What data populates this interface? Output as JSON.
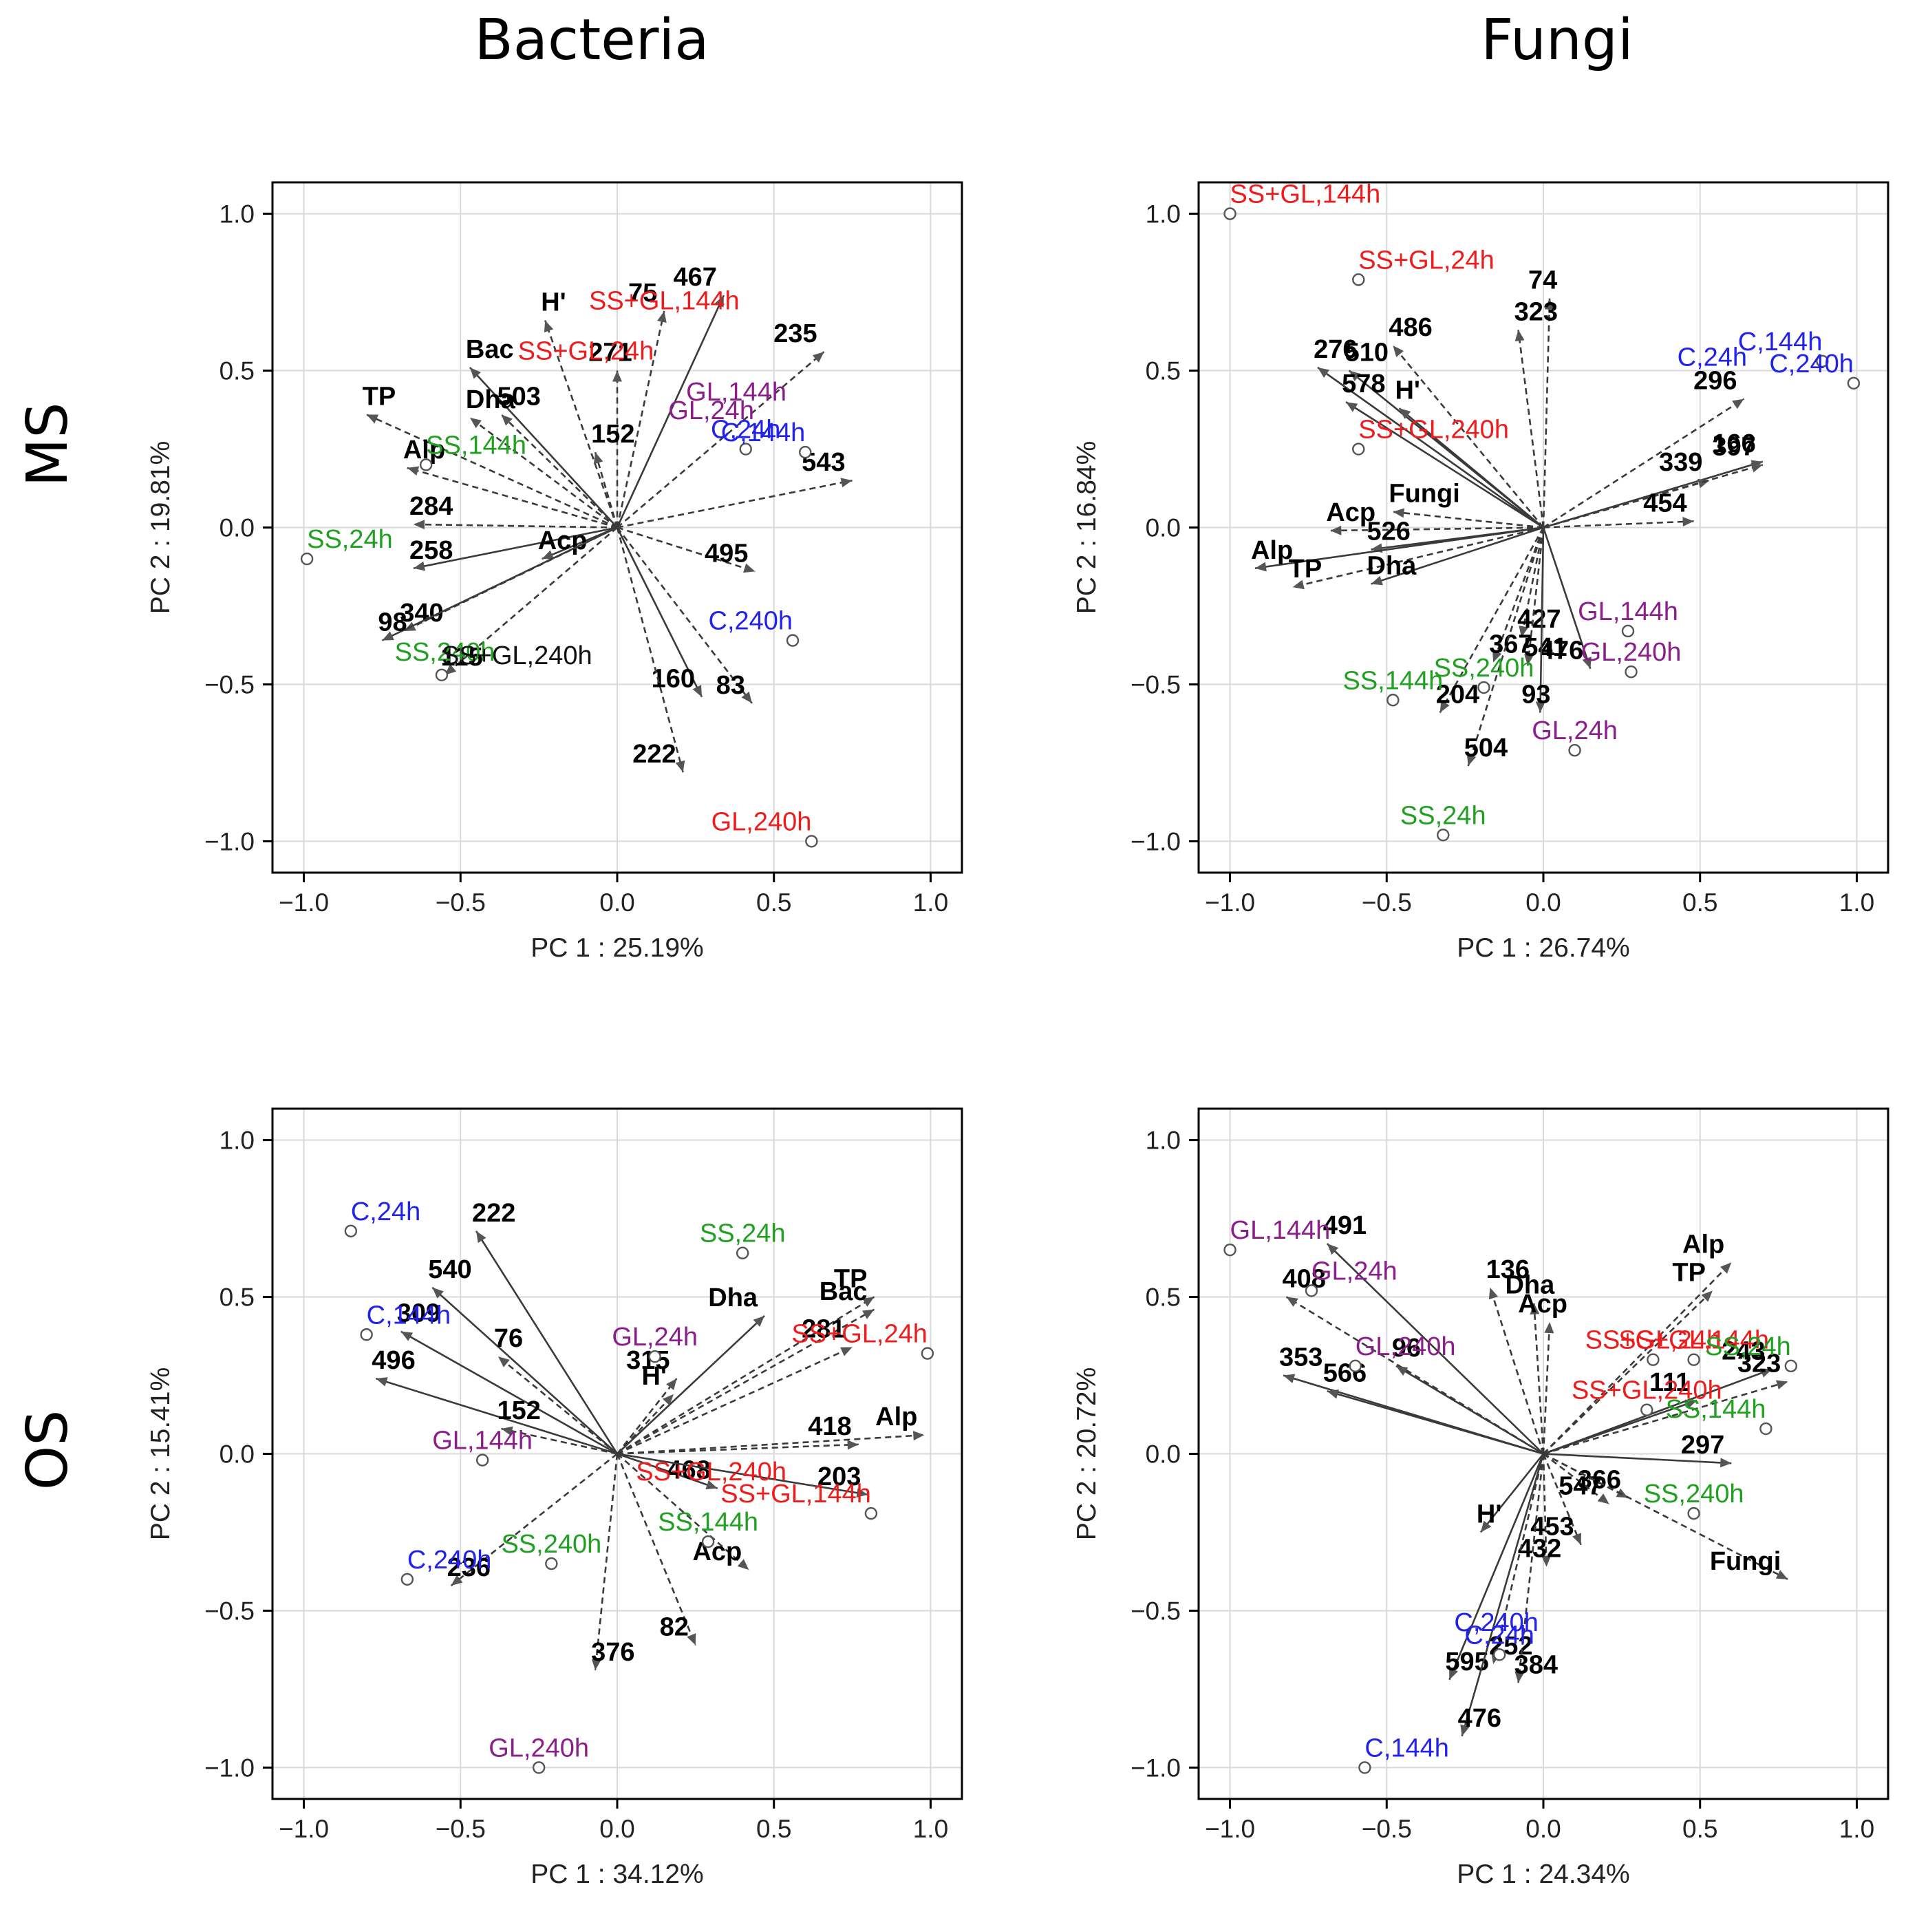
{
  "headers": {
    "columns": [
      "Bacteria",
      "Fungi"
    ],
    "rows": [
      "MS",
      "OS"
    ]
  },
  "colors": {
    "C": "#2222ee",
    "SS": "#22a022",
    "GL": "#8a1f8a",
    "SSGL": "#ee1c1c",
    "black": "#111111"
  },
  "chart_data": [
    {
      "id": "ms-bacteria",
      "type": "scatter",
      "title": "",
      "xlabel": "PC 1 : 25.19%",
      "ylabel": "PC 2 : 19.81%",
      "xlim": [
        -1.1,
        1.1
      ],
      "ylim": [
        -1.1,
        1.1
      ],
      "ticks": [
        -1.0,
        -0.5,
        0.0,
        0.5,
        1.0
      ],
      "tick_labels": [
        "−1.0",
        "−0.5",
        "0.0",
        "0.5",
        "1.0"
      ],
      "variables": [
        {
          "label": "467",
          "x": 0.34,
          "y": 0.74,
          "style": "solid"
        },
        {
          "label": "75",
          "x": 0.15,
          "y": 0.69,
          "style": "dashed"
        },
        {
          "label": "235",
          "x": 0.66,
          "y": 0.56,
          "style": "dashed"
        },
        {
          "label": "271",
          "x": 0.0,
          "y": 0.5,
          "style": "dashed"
        },
        {
          "label": "H'",
          "x": -0.23,
          "y": 0.66,
          "style": "dashed"
        },
        {
          "label": "Bac",
          "x": -0.47,
          "y": 0.51,
          "style": "solid"
        },
        {
          "label": "503",
          "x": -0.37,
          "y": 0.36,
          "style": "dashed"
        },
        {
          "label": "Dha",
          "x": -0.47,
          "y": 0.35,
          "style": "dashed"
        },
        {
          "label": "TP",
          "x": -0.8,
          "y": 0.36,
          "style": "dashed"
        },
        {
          "label": "152",
          "x": -0.07,
          "y": 0.24,
          "style": "dashed"
        },
        {
          "label": "Alp",
          "x": -0.67,
          "y": 0.19,
          "style": "dashed"
        },
        {
          "label": "284",
          "x": -0.65,
          "y": 0.01,
          "style": "dashed"
        },
        {
          "label": "258",
          "x": -0.65,
          "y": -0.13,
          "style": "solid"
        },
        {
          "label": "Acp",
          "x": -0.24,
          "y": -0.1,
          "style": "solid"
        },
        {
          "label": "340",
          "x": -0.68,
          "y": -0.33,
          "style": "dashed"
        },
        {
          "label": "98",
          "x": -0.75,
          "y": -0.36,
          "style": "solid"
        },
        {
          "label": "115",
          "x": -0.55,
          "y": -0.47,
          "style": "dashed"
        },
        {
          "label": "543",
          "x": 0.75,
          "y": 0.15,
          "style": "dashed"
        },
        {
          "label": "495",
          "x": 0.44,
          "y": -0.14,
          "style": "dashed"
        },
        {
          "label": "160",
          "x": 0.27,
          "y": -0.54,
          "style": "solid"
        },
        {
          "label": "83",
          "x": 0.43,
          "y": -0.56,
          "style": "dashed"
        },
        {
          "label": "222",
          "x": 0.21,
          "y": -0.78,
          "style": "dashed"
        }
      ],
      "cases": [
        {
          "label": "SS+GL,144h",
          "x": 0.15,
          "y": 0.66,
          "group": "SSGL",
          "point": false
        },
        {
          "label": "SS+GL,24h",
          "x": -0.1,
          "y": 0.5,
          "group": "SSGL",
          "point": false
        },
        {
          "label": "GL,144h",
          "x": 0.38,
          "y": 0.37,
          "group": "GL",
          "point": false
        },
        {
          "label": "GL,24h",
          "x": 0.3,
          "y": 0.31,
          "group": "GL",
          "point": false
        },
        {
          "label": "C,24h",
          "x": 0.41,
          "y": 0.25,
          "group": "C",
          "point": true
        },
        {
          "label": "C,144h",
          "x": 0.6,
          "y": 0.24,
          "group": "C",
          "point": true
        },
        {
          "label": "SS,144h",
          "x": -0.61,
          "y": 0.2,
          "group": "SS",
          "point": true
        },
        {
          "label": "SS,24h",
          "x": -0.99,
          "y": -0.1,
          "group": "SS",
          "point": true
        },
        {
          "label": "SS,240h",
          "x": -0.55,
          "y": -0.46,
          "group": "SS",
          "point": false
        },
        {
          "label": "SS+GL,240h",
          "x": -0.56,
          "y": -0.47,
          "group": "black",
          "point": true
        },
        {
          "label": "C,240h",
          "x": 0.56,
          "y": -0.36,
          "group": "C",
          "point": true
        },
        {
          "label": "GL,240h",
          "x": 0.62,
          "y": -1.0,
          "group": "SSGL",
          "point": true
        }
      ]
    },
    {
      "id": "ms-fungi",
      "type": "scatter",
      "title": "",
      "xlabel": "PC 1 : 26.74%",
      "ylabel": "PC 2 : 16.84%",
      "xlim": [
        -1.1,
        1.1
      ],
      "ylim": [
        -1.1,
        1.1
      ],
      "ticks": [
        -1.0,
        -0.5,
        0.0,
        0.5,
        1.0
      ],
      "tick_labels": [
        "−1.0",
        "−0.5",
        "0.0",
        "0.5",
        "1.0"
      ],
      "variables": [
        {
          "label": "74",
          "x": 0.02,
          "y": 0.73,
          "style": "dashed"
        },
        {
          "label": "323",
          "x": -0.08,
          "y": 0.63,
          "style": "dashed"
        },
        {
          "label": "486",
          "x": -0.48,
          "y": 0.58,
          "style": "dashed"
        },
        {
          "label": "276",
          "x": -0.72,
          "y": 0.51,
          "style": "solid"
        },
        {
          "label": "510",
          "x": -0.62,
          "y": 0.5,
          "style": "solid"
        },
        {
          "label": "578",
          "x": -0.63,
          "y": 0.4,
          "style": "solid"
        },
        {
          "label": "H'",
          "x": -0.46,
          "y": 0.38,
          "style": "solid"
        },
        {
          "label": "296",
          "x": 0.64,
          "y": 0.41,
          "style": "dashed"
        },
        {
          "label": "166",
          "x": 0.7,
          "y": 0.21,
          "style": "solid"
        },
        {
          "label": "339",
          "x": 0.53,
          "y": 0.15,
          "style": "dashed"
        },
        {
          "label": "397",
          "x": 0.7,
          "y": 0.2,
          "style": "dashed"
        },
        {
          "label": "454",
          "x": 0.48,
          "y": 0.02,
          "style": "dashed"
        },
        {
          "label": "Fungi",
          "x": -0.48,
          "y": 0.05,
          "style": "dashed"
        },
        {
          "label": "Acp",
          "x": -0.68,
          "y": -0.01,
          "style": "dashed"
        },
        {
          "label": "526",
          "x": -0.55,
          "y": -0.07,
          "style": "solid"
        },
        {
          "label": "Alp",
          "x": -0.92,
          "y": -0.13,
          "style": "solid"
        },
        {
          "label": "TP",
          "x": -0.8,
          "y": -0.19,
          "style": "dashed"
        },
        {
          "label": "Dha",
          "x": -0.55,
          "y": -0.18,
          "style": "solid"
        },
        {
          "label": "427",
          "x": -0.07,
          "y": -0.35,
          "style": "dashed"
        },
        {
          "label": "367",
          "x": -0.16,
          "y": -0.43,
          "style": "dashed"
        },
        {
          "label": "541",
          "x": -0.05,
          "y": -0.44,
          "style": "dashed"
        },
        {
          "label": "476",
          "x": 0.15,
          "y": -0.45,
          "style": "solid"
        },
        {
          "label": "204",
          "x": -0.33,
          "y": -0.59,
          "style": "dashed"
        },
        {
          "label": "93",
          "x": -0.01,
          "y": -0.59,
          "style": "solid"
        },
        {
          "label": "504",
          "x": -0.24,
          "y": -0.76,
          "style": "dashed"
        }
      ],
      "cases": [
        {
          "label": "SS+GL,144h",
          "x": -1.0,
          "y": 1.0,
          "group": "SSGL",
          "point": true
        },
        {
          "label": "SS+GL,24h",
          "x": -0.59,
          "y": 0.79,
          "group": "SSGL",
          "point": true
        },
        {
          "label": "SS+GL,240h",
          "x": -0.59,
          "y": 0.25,
          "group": "SSGL",
          "point": true
        },
        {
          "label": "C,24h",
          "x": 0.65,
          "y": 0.48,
          "group": "C",
          "point": false
        },
        {
          "label": "C,144h",
          "x": 0.89,
          "y": 0.53,
          "group": "C",
          "point": true
        },
        {
          "label": "C,240h",
          "x": 0.99,
          "y": 0.46,
          "group": "C",
          "point": true
        },
        {
          "label": "GL,144h",
          "x": 0.27,
          "y": -0.33,
          "group": "GL",
          "point": true
        },
        {
          "label": "GL,240h",
          "x": 0.28,
          "y": -0.46,
          "group": "GL",
          "point": true
        },
        {
          "label": "GL,24h",
          "x": 0.1,
          "y": -0.71,
          "group": "GL",
          "point": true
        },
        {
          "label": "SS,240h",
          "x": -0.19,
          "y": -0.51,
          "group": "SS",
          "point": true
        },
        {
          "label": "SS,144h",
          "x": -0.48,
          "y": -0.55,
          "group": "SS",
          "point": true
        },
        {
          "label": "SS,24h",
          "x": -0.32,
          "y": -0.98,
          "group": "SS",
          "point": true
        }
      ]
    },
    {
      "id": "os-bacteria",
      "type": "scatter",
      "title": "",
      "xlabel": "PC 1 : 34.12%",
      "ylabel": "PC 2 : 15.41%",
      "xlim": [
        -1.1,
        1.1
      ],
      "ylim": [
        -1.1,
        1.1
      ],
      "ticks": [
        -1.0,
        -0.5,
        0.0,
        0.5,
        1.0
      ],
      "tick_labels": [
        "−1.0",
        "−0.5",
        "0.0",
        "0.5",
        "1.0"
      ],
      "variables": [
        {
          "label": "222",
          "x": -0.45,
          "y": 0.71,
          "style": "solid"
        },
        {
          "label": "540",
          "x": -0.59,
          "y": 0.53,
          "style": "solid"
        },
        {
          "label": "309",
          "x": -0.69,
          "y": 0.39,
          "style": "solid"
        },
        {
          "label": "76",
          "x": -0.38,
          "y": 0.31,
          "style": "dashed"
        },
        {
          "label": "496",
          "x": -0.77,
          "y": 0.24,
          "style": "solid"
        },
        {
          "label": "152",
          "x": -0.37,
          "y": 0.08,
          "style": "dashed"
        },
        {
          "label": "TP",
          "x": 0.82,
          "y": 0.5,
          "style": "dashed"
        },
        {
          "label": "Dha",
          "x": 0.47,
          "y": 0.44,
          "style": "solid"
        },
        {
          "label": "Bac",
          "x": 0.82,
          "y": 0.46,
          "style": "dashed"
        },
        {
          "label": "281",
          "x": 0.75,
          "y": 0.34,
          "style": "dashed"
        },
        {
          "label": "315",
          "x": 0.19,
          "y": 0.24,
          "style": "dashed"
        },
        {
          "label": "H'",
          "x": 0.18,
          "y": 0.19,
          "style": "dashed"
        },
        {
          "label": "418",
          "x": 0.77,
          "y": 0.03,
          "style": "dashed"
        },
        {
          "label": "Alp",
          "x": 0.98,
          "y": 0.06,
          "style": "dashed"
        },
        {
          "label": "468",
          "x": 0.32,
          "y": -0.11,
          "style": "solid"
        },
        {
          "label": "203",
          "x": 0.8,
          "y": -0.13,
          "style": "solid"
        },
        {
          "label": "Acp",
          "x": 0.42,
          "y": -0.37,
          "style": "dashed"
        },
        {
          "label": "236",
          "x": -0.53,
          "y": -0.42,
          "style": "dashed"
        },
        {
          "label": "82",
          "x": 0.25,
          "y": -0.61,
          "style": "dashed"
        },
        {
          "label": "376",
          "x": -0.07,
          "y": -0.69,
          "style": "dashed"
        }
      ],
      "cases": [
        {
          "label": "C,24h",
          "x": -0.85,
          "y": 0.71,
          "group": "C",
          "point": true
        },
        {
          "label": "C,144h",
          "x": -0.8,
          "y": 0.38,
          "group": "C",
          "point": true
        },
        {
          "label": "SS,24h",
          "x": 0.4,
          "y": 0.64,
          "group": "SS",
          "point": true
        },
        {
          "label": "GL,24h",
          "x": 0.12,
          "y": 0.31,
          "group": "GL",
          "point": true
        },
        {
          "label": "SS+GL,24h",
          "x": 0.99,
          "y": 0.32,
          "group": "SSGL",
          "point": true
        },
        {
          "label": "GL,144h",
          "x": -0.43,
          "y": -0.02,
          "group": "GL",
          "point": true
        },
        {
          "label": "SS+GL,240h",
          "x": 0.3,
          "y": -0.12,
          "group": "SSGL",
          "point": false
        },
        {
          "label": "SS+GL,144h",
          "x": 0.81,
          "y": -0.19,
          "group": "SSGL",
          "point": true
        },
        {
          "label": "SS,144h",
          "x": 0.29,
          "y": -0.28,
          "group": "SS",
          "point": true
        },
        {
          "label": "C,240h",
          "x": -0.67,
          "y": -0.4,
          "group": "C",
          "point": true
        },
        {
          "label": "SS,240h",
          "x": -0.21,
          "y": -0.35,
          "group": "SS",
          "point": true
        },
        {
          "label": "GL,240h",
          "x": -0.25,
          "y": -1.0,
          "group": "GL",
          "point": true
        }
      ]
    },
    {
      "id": "os-fungi",
      "type": "scatter",
      "title": "",
      "xlabel": "PC 1 : 24.34%",
      "ylabel": "PC 2 : 20.72%",
      "xlim": [
        -1.1,
        1.1
      ],
      "ylim": [
        -1.1,
        1.1
      ],
      "ticks": [
        -1.0,
        -0.5,
        0.0,
        0.5,
        1.0
      ],
      "tick_labels": [
        "−1.0",
        "−0.5",
        "0.0",
        "0.5",
        "1.0"
      ],
      "variables": [
        {
          "label": "491",
          "x": -0.69,
          "y": 0.67,
          "style": "solid"
        },
        {
          "label": "136",
          "x": -0.17,
          "y": 0.53,
          "style": "dashed"
        },
        {
          "label": "Dha",
          "x": -0.03,
          "y": 0.48,
          "style": "dashed"
        },
        {
          "label": "Acp",
          "x": 0.02,
          "y": 0.42,
          "style": "dashed"
        },
        {
          "label": "408",
          "x": -0.82,
          "y": 0.5,
          "style": "dashed"
        },
        {
          "label": "96",
          "x": -0.47,
          "y": 0.28,
          "style": "solid"
        },
        {
          "label": "353",
          "x": -0.83,
          "y": 0.25,
          "style": "solid"
        },
        {
          "label": "566",
          "x": -0.69,
          "y": 0.2,
          "style": "solid"
        },
        {
          "label": "TP",
          "x": 0.54,
          "y": 0.52,
          "style": "dashed"
        },
        {
          "label": "Alp",
          "x": 0.6,
          "y": 0.61,
          "style": "dashed"
        },
        {
          "label": "243",
          "x": 0.73,
          "y": 0.27,
          "style": "solid"
        },
        {
          "label": "111",
          "x": 0.49,
          "y": 0.17,
          "style": "solid"
        },
        {
          "label": "323",
          "x": 0.78,
          "y": 0.23,
          "style": "dashed"
        },
        {
          "label": "297",
          "x": 0.6,
          "y": -0.03,
          "style": "solid"
        },
        {
          "label": "366",
          "x": 0.27,
          "y": -0.14,
          "style": "dashed"
        },
        {
          "label": "547",
          "x": 0.21,
          "y": -0.16,
          "style": "dashed"
        },
        {
          "label": "Fungi",
          "x": 0.78,
          "y": -0.4,
          "style": "dashed"
        },
        {
          "label": "H'",
          "x": -0.2,
          "y": -0.25,
          "style": "solid"
        },
        {
          "label": "453",
          "x": 0.12,
          "y": -0.29,
          "style": "dashed"
        },
        {
          "label": "432",
          "x": 0.01,
          "y": -0.36,
          "style": "dashed"
        },
        {
          "label": "252",
          "x": -0.16,
          "y": -0.67,
          "style": "dashed"
        },
        {
          "label": "595",
          "x": -0.3,
          "y": -0.72,
          "style": "solid"
        },
        {
          "label": "384",
          "x": -0.08,
          "y": -0.73,
          "style": "dashed"
        },
        {
          "label": "476",
          "x": -0.26,
          "y": -0.9,
          "style": "solid"
        }
      ],
      "cases": [
        {
          "label": "GL,144h",
          "x": -1.0,
          "y": 0.65,
          "group": "GL",
          "point": true
        },
        {
          "label": "GL,24h",
          "x": -0.74,
          "y": 0.52,
          "group": "GL",
          "point": true
        },
        {
          "label": "GL,240h",
          "x": -0.6,
          "y": 0.28,
          "group": "GL",
          "point": true
        },
        {
          "label": "SS+GL,144h",
          "x": 0.48,
          "y": 0.3,
          "group": "SSGL",
          "point": true
        },
        {
          "label": "SS+GL,24h",
          "x": 0.35,
          "y": 0.3,
          "group": "SSGL",
          "point": true
        },
        {
          "label": "SS+GL,240h",
          "x": 0.33,
          "y": 0.14,
          "group": "SSGL",
          "point": true
        },
        {
          "label": "SS,24h",
          "x": 0.79,
          "y": 0.28,
          "group": "SS",
          "point": true
        },
        {
          "label": "SS,144h",
          "x": 0.71,
          "y": 0.08,
          "group": "SS",
          "point": true
        },
        {
          "label": "SS,240h",
          "x": 0.48,
          "y": -0.19,
          "group": "SS",
          "point": true
        },
        {
          "label": "C,240h",
          "x": -0.15,
          "y": -0.6,
          "group": "C",
          "point": false
        },
        {
          "label": "C,24h",
          "x": -0.14,
          "y": -0.64,
          "group": "C",
          "point": true
        },
        {
          "label": "C,144h",
          "x": -0.57,
          "y": -1.0,
          "group": "C",
          "point": true
        }
      ]
    }
  ]
}
